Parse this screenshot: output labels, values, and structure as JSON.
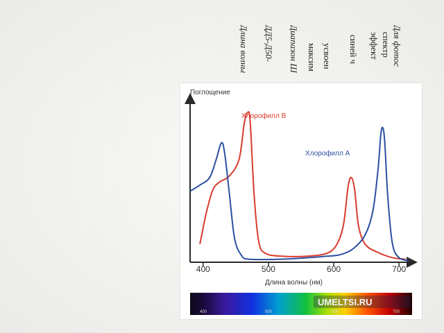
{
  "slide": {
    "text_lines": [
      {
        "text": "Для фотос",
        "italic": true
      },
      {
        "text": "спектр",
        "italic": false
      },
      {
        "text": "эффект",
        "italic": false
      },
      {
        "text": "синей ч",
        "italic": false
      },
      {
        "text": "усвоен",
        "italic": false
      },
      {
        "text": "максим",
        "italic": false
      },
      {
        "text": "Диапазон Ш",
        "italic": true
      },
      {
        "text": "ДД5-Д50-",
        "italic": true
      },
      {
        "text": "Длина волны",
        "italic": true
      }
    ]
  },
  "watermark": "UMELTSI.RU",
  "chart_data": {
    "type": "line",
    "ylabel": "Поглощение",
    "xlabel": "Длина волны (нм)",
    "xlim": [
      380,
      720
    ],
    "ylim": [
      0,
      1
    ],
    "x_ticks": [
      400,
      500,
      600,
      700
    ],
    "spectrum_ticks": [
      "400",
      "500",
      "600",
      "700"
    ],
    "series": [
      {
        "name": "Хлорофилл В",
        "color": "#d93a2b",
        "points": [
          [
            395,
            0.12
          ],
          [
            405,
            0.33
          ],
          [
            415,
            0.48
          ],
          [
            425,
            0.53
          ],
          [
            440,
            0.57
          ],
          [
            455,
            0.68
          ],
          [
            463,
            0.92
          ],
          [
            468,
            0.99
          ],
          [
            472,
            0.93
          ],
          [
            478,
            0.45
          ],
          [
            485,
            0.14
          ],
          [
            495,
            0.06
          ],
          [
            520,
            0.04
          ],
          [
            560,
            0.04
          ],
          [
            590,
            0.06
          ],
          [
            605,
            0.12
          ],
          [
            615,
            0.25
          ],
          [
            622,
            0.5
          ],
          [
            627,
            0.56
          ],
          [
            632,
            0.48
          ],
          [
            638,
            0.24
          ],
          [
            648,
            0.12
          ],
          [
            665,
            0.07
          ],
          [
            690,
            0.03
          ],
          [
            710,
            0.02
          ]
        ]
      },
      {
        "name": "Хлорофилл А",
        "color": "#2a4fa0",
        "points": [
          [
            380,
            0.47
          ],
          [
            395,
            0.51
          ],
          [
            410,
            0.56
          ],
          [
            420,
            0.68
          ],
          [
            428,
            0.79
          ],
          [
            433,
            0.72
          ],
          [
            440,
            0.46
          ],
          [
            448,
            0.16
          ],
          [
            458,
            0.05
          ],
          [
            470,
            0.02
          ],
          [
            520,
            0.02
          ],
          [
            560,
            0.03
          ],
          [
            590,
            0.04
          ],
          [
            610,
            0.05
          ],
          [
            630,
            0.09
          ],
          [
            648,
            0.18
          ],
          [
            660,
            0.34
          ],
          [
            668,
            0.62
          ],
          [
            672,
            0.84
          ],
          [
            675,
            0.89
          ],
          [
            678,
            0.8
          ],
          [
            683,
            0.42
          ],
          [
            690,
            0.12
          ],
          [
            700,
            0.03
          ],
          [
            715,
            0.01
          ]
        ]
      }
    ]
  }
}
